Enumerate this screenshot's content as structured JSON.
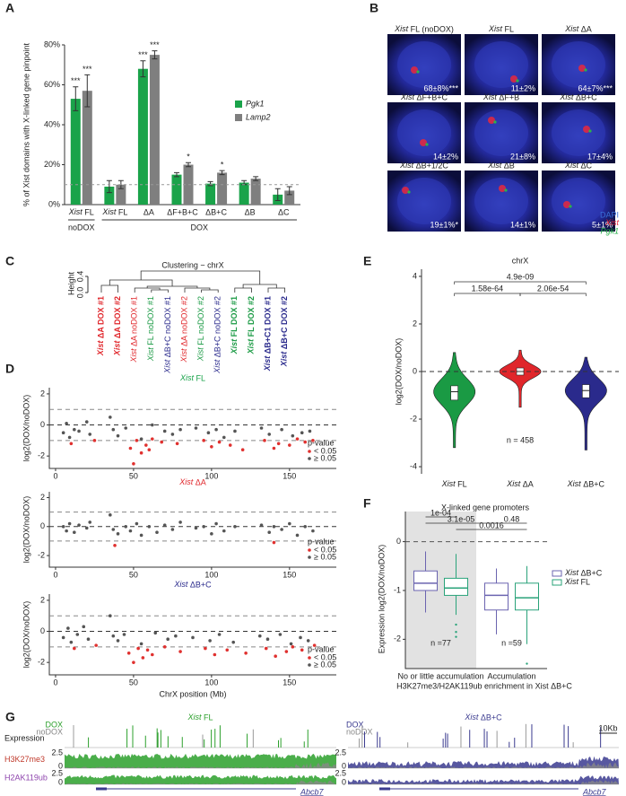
{
  "panel_labels": [
    "A",
    "B",
    "C",
    "D",
    "E",
    "F",
    "G"
  ],
  "chart_data": [
    {
      "type": "bar",
      "y_label": "% of Xist domains with X-linked gene pinpoint",
      "categories": [
        "Xist FL",
        "Xist FL",
        "ΔA",
        "ΔF+B+C",
        "ΔB+C",
        "ΔB",
        "ΔC"
      ],
      "groups": [
        {
          "label": "noDOX",
          "start": 0,
          "end": 0
        },
        {
          "label": "DOX",
          "start": 1,
          "end": 6
        }
      ],
      "series": [
        {
          "name": "Pgk1",
          "color": "#1aa34a",
          "values": [
            53,
            9,
            68,
            15,
            10.5,
            11,
            5
          ],
          "errors": [
            6,
            3,
            4,
            1,
            1,
            1,
            3
          ]
        },
        {
          "name": "Lamp2",
          "color": "#7f7f7f",
          "values": [
            57,
            10,
            75,
            20,
            16,
            13,
            7
          ],
          "errors": [
            8,
            2,
            2,
            1,
            1,
            1,
            2
          ]
        }
      ],
      "ylim": [
        0,
        80
      ],
      "yticks": [
        {
          "value": 0,
          "label": "0%"
        },
        {
          "value": 20,
          "label": "20%"
        },
        {
          "value": 40,
          "label": "40%"
        },
        {
          "value": 60,
          "label": "60%"
        },
        {
          "value": 80,
          "label": "80%"
        }
      ],
      "reference_line": 10,
      "annotations": [
        {
          "label": "***",
          "series": 0,
          "index": 0
        },
        {
          "label": "***",
          "series": 1,
          "index": 0
        },
        {
          "label": "***",
          "series": 0,
          "index": 2
        },
        {
          "label": "***",
          "series": 1,
          "index": 2
        },
        {
          "label": "*",
          "series": 1,
          "index": 3
        },
        {
          "label": "*",
          "series": 1,
          "index": 4
        }
      ]
    },
    {
      "type": "scatter",
      "title": "Xist FL",
      "title_color": "#1aa34a",
      "y_label": "log2(DOX/noDOX)",
      "legend_title": "p-value",
      "series": [
        {
          "name": "< 0.05",
          "color": "#e0312f",
          "x": [
            10,
            25,
            48,
            50,
            52,
            55,
            58,
            60,
            62,
            68,
            78,
            95,
            100,
            105,
            112,
            120,
            134,
            140,
            143,
            150,
            155,
            160,
            165
          ],
          "y": [
            -1.2,
            -1.0,
            -1.5,
            -2.5,
            -1.0,
            -1.8,
            -1.3,
            -1.6,
            -0.9,
            -1.1,
            -1.2,
            -1.0,
            -1.4,
            -1.1,
            -1.3,
            -1.6,
            -1.0,
            -1.5,
            -1.2,
            -1.3,
            -0.9,
            -1.1,
            -1.0
          ]
        },
        {
          "name": "≥ 0.05",
          "color": "#555555",
          "x": [
            5,
            7,
            9,
            12,
            15,
            20,
            22,
            35,
            37,
            40,
            45,
            55,
            62,
            70,
            75,
            80,
            90,
            98,
            103,
            108,
            115,
            132,
            137,
            145,
            152,
            158,
            163
          ],
          "y": [
            -0.5,
            0.1,
            -0.8,
            -0.3,
            -0.4,
            0.2,
            -0.6,
            0.5,
            -0.3,
            -0.7,
            -0.2,
            -0.9,
            0,
            -0.4,
            -0.6,
            -0.3,
            -0.2,
            -0.5,
            -0.3,
            -0.8,
            -0.4,
            -0.2,
            -0.6,
            -0.3,
            -0.7,
            -0.5,
            -0.4
          ]
        }
      ],
      "xlim": [
        -4,
        180
      ],
      "xticks": [
        0,
        50,
        100,
        150
      ],
      "ylim": [
        -2.8,
        2.4
      ],
      "yticks": [
        -2,
        0,
        2
      ],
      "reference_lines": [
        -1,
        0,
        1
      ]
    },
    {
      "type": "scatter",
      "title": "Xist ΔA",
      "title_color": "#e0262b",
      "y_label": "log2(DOX/noDOX)",
      "legend_title": "p-value",
      "series": [
        {
          "name": "< 0.05",
          "color": "#e0312f",
          "x": [
            38,
            140
          ],
          "y": [
            -1.3,
            -1.1
          ]
        },
        {
          "name": "≥ 0.05",
          "color": "#555555",
          "x": [
            5,
            7,
            9,
            12,
            15,
            20,
            22,
            35,
            37,
            40,
            45,
            48,
            52,
            55,
            60,
            65,
            70,
            75,
            80,
            90,
            95,
            100,
            103,
            108,
            115,
            132,
            137,
            140,
            145,
            150,
            155,
            160,
            165
          ],
          "y": [
            0,
            -0.3,
            0.2,
            -0.4,
            0.1,
            -0.1,
            0.3,
            0.8,
            -0.2,
            -0.5,
            0,
            -0.3,
            0.2,
            -0.6,
            0,
            -0.4,
            0.1,
            -0.2,
            0.3,
            -0.1,
            0,
            -0.5,
            0.2,
            -0.3,
            0,
            0.1,
            -0.4,
            0,
            -0.2,
            0.2,
            -0.6,
            0,
            -0.3
          ]
        }
      ],
      "xlim": [
        -4,
        180
      ],
      "xticks": [
        0,
        50,
        100,
        150
      ],
      "ylim": [
        -2.8,
        2.4
      ],
      "yticks": [
        -2,
        0,
        2
      ],
      "reference_lines": [
        -1,
        0,
        1
      ]
    },
    {
      "type": "scatter",
      "title": "Xist ΔB+C",
      "title_color": "#2a2a8c",
      "y_label": "log2(DOX/noDOX)",
      "x_label": "ChrX position (Mb)",
      "legend_title": "p-value",
      "series": [
        {
          "name": "< 0.05",
          "color": "#e0312f",
          "x": [
            12,
            26,
            47,
            50,
            53,
            56,
            59,
            62,
            70,
            80,
            96,
            102,
            110,
            122,
            135,
            141,
            148,
            152,
            158,
            166
          ],
          "y": [
            -1.1,
            -0.9,
            -1.4,
            -2.0,
            -1.1,
            -1.7,
            -1.2,
            -1.5,
            -1.0,
            -1.3,
            -1.1,
            -1.5,
            -1.2,
            -1.4,
            -1.1,
            -1.6,
            -1.3,
            -1.0,
            -1.2,
            -0.9
          ]
        },
        {
          "name": "≥ 0.05",
          "color": "#555555",
          "x": [
            5,
            8,
            10,
            14,
            18,
            21,
            35,
            37,
            40,
            44,
            55,
            64,
            72,
            77,
            88,
            99,
            105,
            114,
            131,
            136,
            144,
            151,
            157,
            162
          ],
          "y": [
            -0.4,
            0.2,
            -0.7,
            -0.2,
            0.3,
            -0.5,
            1.0,
            -0.3,
            -0.6,
            -0.2,
            -0.8,
            -0.1,
            -0.5,
            -0.3,
            -0.4,
            -0.6,
            -0.2,
            -0.7,
            -0.3,
            -0.5,
            -0.2,
            -0.8,
            -0.4,
            -0.6
          ]
        }
      ],
      "xlim": [
        -4,
        180
      ],
      "xticks": [
        0,
        50,
        100,
        150
      ],
      "ylim": [
        -2.8,
        2.4
      ],
      "yticks": [
        -2,
        0,
        2
      ],
      "reference_lines": [
        -1,
        0,
        1
      ]
    },
    {
      "type": "violin",
      "title": "chrX",
      "y_label": "log2(DOX/noDOX)",
      "categories": [
        "Xist FL",
        "Xist ΔA",
        "Xist ΔB+C"
      ],
      "colors": [
        "#1a9a44",
        "#e0262b",
        "#2a2a8c"
      ],
      "stats": [
        {
          "min": -3.2,
          "q1": -1.2,
          "median": -0.85,
          "q3": -0.6,
          "max": 0.8
        },
        {
          "min": -1.5,
          "q1": -0.15,
          "median": 0,
          "q3": 0.15,
          "max": 0.9
        },
        {
          "min": -3.3,
          "q1": -1.1,
          "median": -0.8,
          "q3": -0.55,
          "max": 0.6
        }
      ],
      "ylim": [
        -4.3,
        4.3
      ],
      "yticks": [
        -4,
        -2,
        0,
        2,
        4
      ],
      "reference_line": 0,
      "comparisons": [
        {
          "label": "1.58e-64",
          "from": 0,
          "to": 1
        },
        {
          "label": "4.9e-09",
          "from": 0,
          "to": 2
        },
        {
          "label": "2.06e-54",
          "from": 1,
          "to": 2
        }
      ],
      "n_label": "n = 458"
    },
    {
      "type": "box",
      "title": "X-linked gene promoters",
      "y_label": "Expression log2(DOX/noDOX)",
      "x_label": "H3K27me3/H2AK119ub enrichment in Xist ΔB+C",
      "categories": [
        "No or little accumulation",
        "Accumulation"
      ],
      "n_labels": [
        "n =77",
        "n =59"
      ],
      "shaded_category": 0,
      "series": [
        {
          "name": "Xist ΔB+C",
          "color": "#6b64b0",
          "boxes": [
            {
              "whislo": -1.45,
              "q1": -1.0,
              "med": -0.85,
              "q3": -0.6,
              "whishi": -0.2,
              "fliers": []
            },
            {
              "whislo": -1.9,
              "q1": -1.4,
              "med": -1.1,
              "q3": -0.85,
              "whishi": -0.55,
              "fliers": []
            }
          ]
        },
        {
          "name": "Xist FL",
          "color": "#2aa37a",
          "boxes": [
            {
              "whislo": -1.5,
              "q1": -1.1,
              "med": -0.95,
              "q3": -0.75,
              "whishi": -0.25,
              "fliers": [
                -1.7,
                -1.85,
                -1.95
              ]
            },
            {
              "whislo": -2.1,
              "q1": -1.4,
              "med": -1.15,
              "q3": -0.85,
              "whishi": -0.5,
              "fliers": [
                -2.5
              ]
            }
          ]
        }
      ],
      "ylim": [
        -2.6,
        0.25
      ],
      "yticks": [
        -2,
        -1,
        0
      ],
      "reference_line": 0,
      "comparisons": [
        {
          "label": "1e-04",
          "from": 0,
          "to": 1
        },
        {
          "label": "3.1e-05",
          "from": 0,
          "to": 2
        },
        {
          "label": "0.48",
          "from": 2,
          "to": 3
        },
        {
          "label": "0.0016",
          "from": 1,
          "to": 3
        }
      ]
    }
  ],
  "images": {
    "cells": [
      {
        "title": "Xist FL (noDOX)",
        "value": "68±8%***"
      },
      {
        "title": "Xist FL",
        "value": "11±2%"
      },
      {
        "title": "Xist ΔA",
        "value": "64±7%***"
      },
      {
        "title": "Xist ΔF+B+C",
        "value": "14±2%"
      },
      {
        "title": "Xist ΔF+B",
        "value": "21±8%"
      },
      {
        "title": "Xist ΔB+C",
        "value": "17±4%"
      },
      {
        "title": "Xist ΔB+1/2C",
        "value": "19±1%*"
      },
      {
        "title": "Xist ΔB",
        "value": "14±1%"
      },
      {
        "title": "Xist ΔC",
        "value": "5±1%"
      }
    ],
    "legend": [
      {
        "label": "DAPI",
        "color": "#3a6fd8"
      },
      {
        "label": "Xist",
        "color": "#e8283c"
      },
      {
        "label": "Pgk1",
        "color": "#2bb24c"
      }
    ]
  },
  "dendrogram": {
    "title": "Clustering − chrX",
    "axis_label": "Height",
    "ticks": [
      {
        "value": 0,
        "label": "0.0"
      },
      {
        "value": 0.4,
        "label": "0.4"
      }
    ],
    "leaves": [
      {
        "label": "Xist ΔA DOX #1",
        "color": "#e0262b",
        "bold": true
      },
      {
        "label": "Xist ΔA DOX #2",
        "color": "#e0262b",
        "bold": true
      },
      {
        "label": "Xist ΔA noDOX #1",
        "color": "#e0262b",
        "bold": false
      },
      {
        "label": "Xist FL noDOX #1",
        "color": "#1a9a44",
        "bold": false
      },
      {
        "label": "Xist ΔB+C noDOX #1",
        "color": "#2a2a8c",
        "bold": false
      },
      {
        "label": "Xist ΔA noDOX #2",
        "color": "#e0262b",
        "bold": false
      },
      {
        "label": "Xist FL noDOX #2",
        "color": "#1a9a44",
        "bold": false
      },
      {
        "label": "Xist ΔB+C noDOX #2",
        "color": "#2a2a8c",
        "bold": false
      },
      {
        "label": "Xist FL DOX #1",
        "color": "#1a9a44",
        "bold": true
      },
      {
        "label": "Xist FL DOX #2",
        "color": "#1a9a44",
        "bold": true
      },
      {
        "label": "Xist ΔB+C1 DOX #1",
        "color": "#2a2a8c",
        "bold": true
      },
      {
        "label": "Xist ΔB+C DOX #2",
        "color": "#2a2a8c",
        "bold": true
      }
    ]
  },
  "tracks": {
    "panels": [
      {
        "title": "Xist FL",
        "color": "#2ca02c"
      },
      {
        "title": "Xist ΔB+C",
        "color": "#3b3b8f"
      }
    ],
    "rows": [
      {
        "label": "Expression",
        "color": "#222222"
      },
      {
        "label": "H3K27me3",
        "color": "#c0392b"
      },
      {
        "label": "H2AK119ub",
        "color": "#8e44ad"
      }
    ],
    "legend": [
      "DOX",
      "noDOX"
    ],
    "scale": [
      0,
      2.5
    ],
    "scale_bar": "10Kb",
    "gene": "Abcb7"
  }
}
